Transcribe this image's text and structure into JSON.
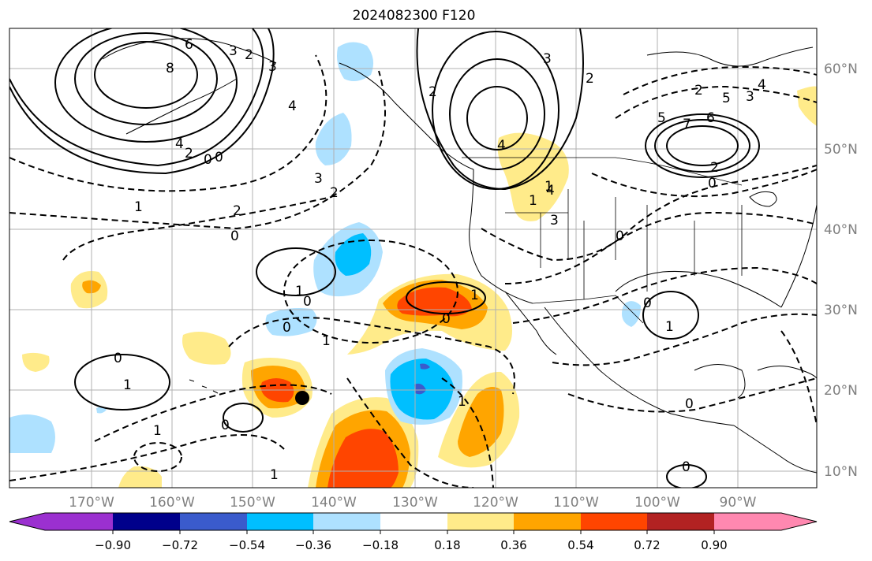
{
  "title": "2024082300 F120",
  "map": {
    "lon_ticks": [
      "170°W",
      "160°W",
      "150°W",
      "140°W",
      "130°W",
      "120°W",
      "110°W",
      "100°W",
      "90°W"
    ],
    "lat_ticks": [
      "60°N",
      "50°N",
      "40°N",
      "30°N",
      "20°N",
      "10°N"
    ],
    "contour_labels": [
      "6",
      "8",
      "3",
      "2",
      "4",
      "2",
      "0",
      "0",
      "1",
      "2",
      "0",
      "3",
      "2",
      "4",
      "3",
      "2",
      "4",
      "3",
      "2",
      "5",
      "7",
      "6",
      "5",
      "4",
      "4",
      "3",
      "2",
      "0",
      "2",
      "3",
      "1",
      "0",
      "1",
      "0",
      "1",
      "0",
      "1",
      "1",
      "1",
      "0",
      "0",
      "1",
      "1",
      "0",
      "1",
      "0",
      "1",
      "0",
      "0"
    ],
    "marker": "storm-center"
  },
  "colorbar": {
    "ticks": [
      "−0.90",
      "−0.72",
      "−0.54",
      "−0.36",
      "−0.18",
      "0.18",
      "0.36",
      "0.54",
      "0.72",
      "0.90"
    ],
    "colors": [
      "#9b30d0",
      "#00008b",
      "#3a5bcc",
      "#00bfff",
      "#aee1ff",
      "#ffffff",
      "#ffeb8a",
      "#ffa500",
      "#ff4500",
      "#b22222",
      "#ff88b0"
    ]
  },
  "fill_colors": {
    "light_blue": "#aee1ff",
    "blue": "#00bfff",
    "royal": "#3a5bcc",
    "yellow": "#ffeb8a",
    "orange": "#ffa500",
    "red": "#ff4500"
  }
}
